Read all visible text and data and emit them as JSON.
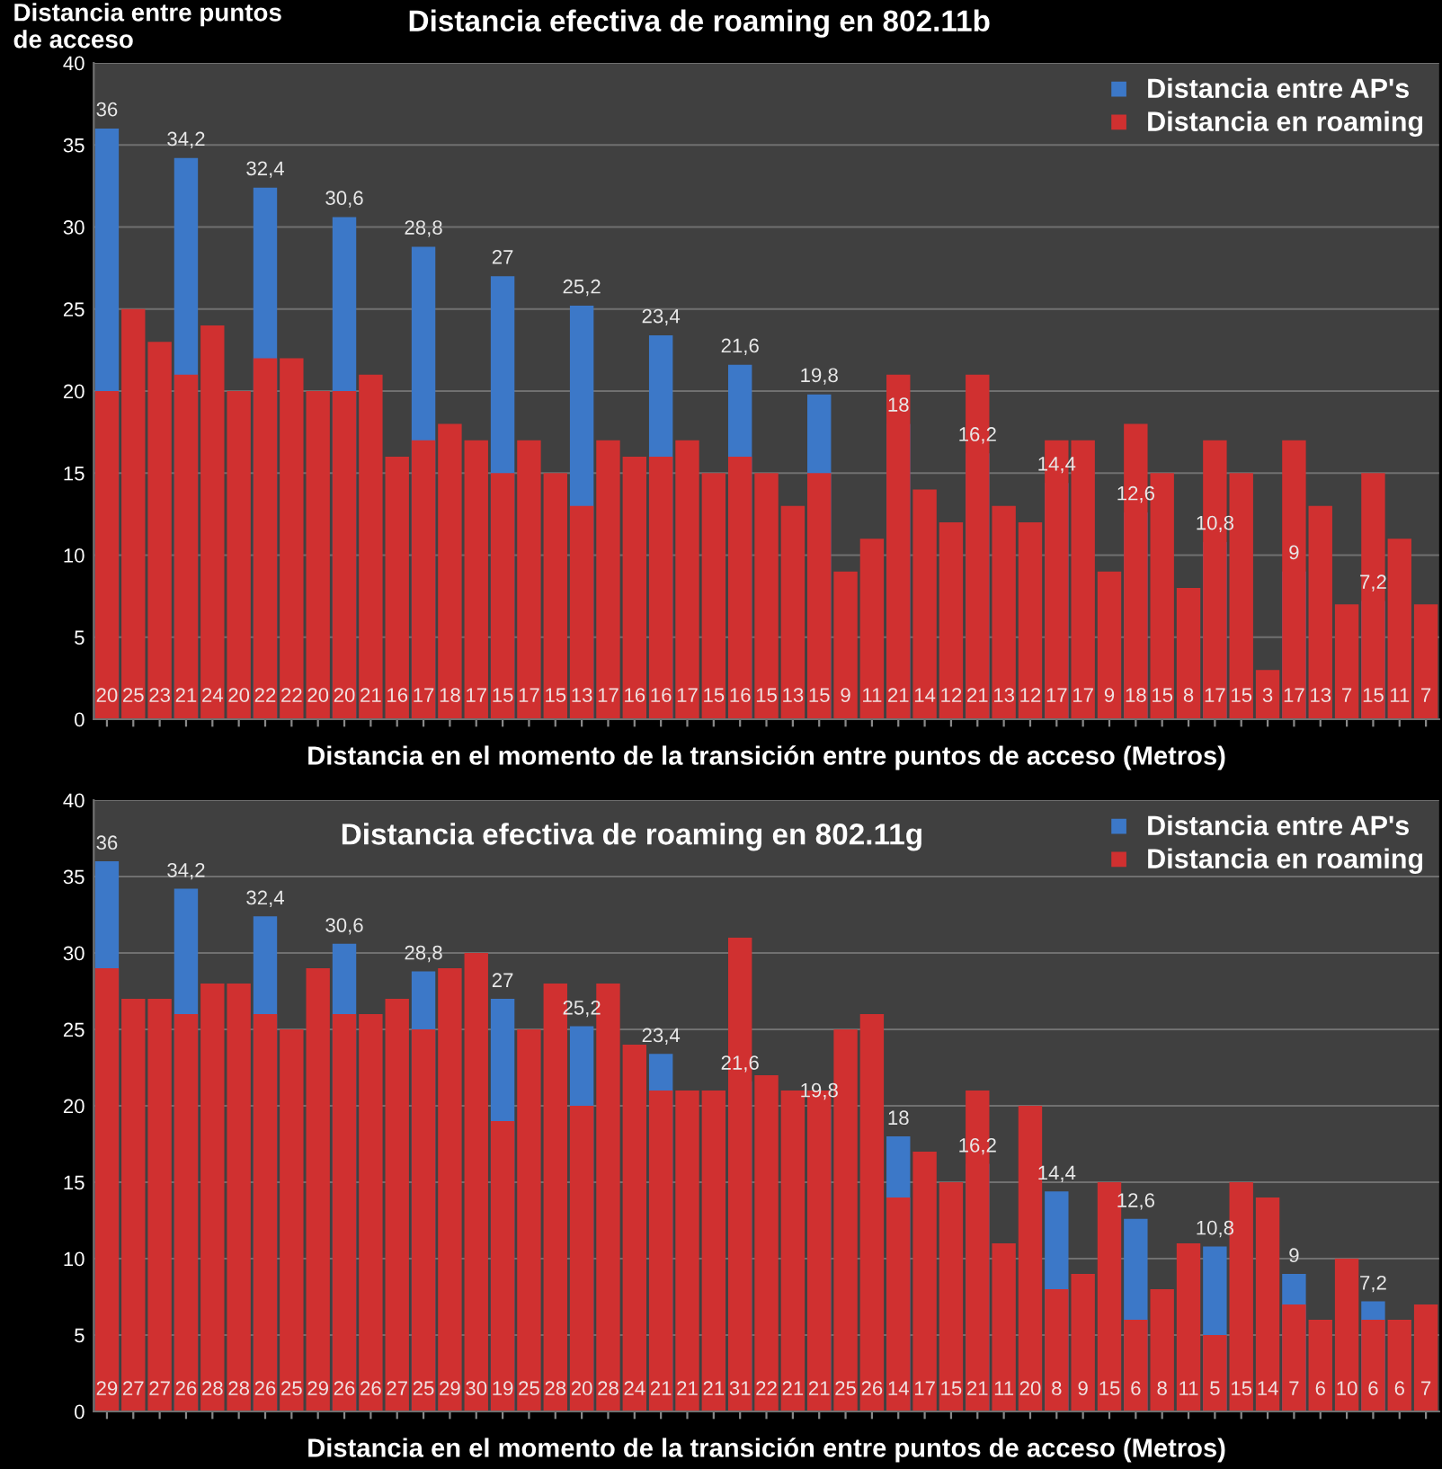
{
  "chart_data": [
    {
      "type": "bar",
      "title": "Distancia efectiva de roaming en 802.11b",
      "ylabel": "Distancia entre puntos de acceso",
      "xlabel": "Distancia en el momento de la transición entre puntos de acceso (Metros)",
      "categories": [
        null,
        null,
        null,
        null,
        null,
        null,
        null,
        null,
        null,
        null,
        null,
        null,
        null,
        null,
        null,
        null,
        null,
        null,
        null,
        null,
        null,
        null,
        null,
        null,
        null,
        null,
        null,
        null,
        null,
        null,
        null,
        null,
        null,
        null,
        null,
        null,
        null,
        null,
        null,
        null,
        null,
        null,
        null,
        null,
        null,
        null,
        null,
        null,
        null,
        null,
        null
      ],
      "ylim": [
        0,
        40
      ],
      "yticks": [
        0,
        5,
        10,
        15,
        20,
        25,
        30,
        35,
        40
      ],
      "grid": "y",
      "legend": "top right",
      "series": [
        {
          "name": "Distancia entre AP's",
          "color": "#3c78c8",
          "values": [
            36,
            null,
            null,
            34.2,
            null,
            null,
            32.4,
            null,
            null,
            30.6,
            null,
            null,
            28.8,
            null,
            null,
            27,
            null,
            null,
            25.2,
            null,
            null,
            23.4,
            null,
            null,
            21.6,
            null,
            null,
            19.8,
            null,
            null,
            18,
            null,
            null,
            16.2,
            null,
            null,
            14.4,
            null,
            null,
            12.6,
            null,
            null,
            10.8,
            null,
            null,
            9,
            null,
            null,
            7.2,
            null,
            null
          ],
          "value_labels": [
            "36",
            null,
            null,
            "34,2",
            null,
            null,
            "32,4",
            null,
            null,
            "30,6",
            null,
            null,
            "28,8",
            null,
            null,
            "27",
            null,
            null,
            "25,2",
            null,
            null,
            "23,4",
            null,
            null,
            "21,6",
            null,
            null,
            "19,8",
            null,
            null,
            "18",
            null,
            null,
            "16,2",
            null,
            null,
            "14,4",
            null,
            null,
            "12,6",
            null,
            null,
            "10,8",
            null,
            null,
            "9",
            null,
            null,
            "7,2",
            null,
            null
          ]
        },
        {
          "name": "Distancia en roaming",
          "color": "#d03030",
          "values": [
            20,
            25,
            23,
            21,
            24,
            20,
            22,
            22,
            20,
            20,
            21,
            16,
            17,
            18,
            17,
            15,
            17,
            15,
            13,
            17,
            16,
            16,
            17,
            15,
            16,
            15,
            13,
            15,
            9,
            11,
            21,
            14,
            12,
            21,
            13,
            12,
            17,
            17,
            9,
            18,
            15,
            8,
            17,
            15,
            3,
            17,
            13,
            7,
            15,
            11,
            7
          ],
          "value_labels": [
            "20",
            "25",
            "23",
            "21",
            "24",
            "20",
            "22",
            "22",
            "20",
            "20",
            "21",
            "16",
            "17",
            "18",
            "17",
            "15",
            "17",
            "15",
            "13",
            "17",
            "16",
            "16",
            "17",
            "15",
            "16",
            "15",
            "13",
            "15",
            "9",
            "11",
            "21",
            "14",
            "12",
            "21",
            "13",
            "12",
            "17",
            "17",
            "9",
            "18",
            "15",
            "8",
            "17",
            "15",
            "3",
            "17",
            "13",
            "7",
            "15",
            "11",
            "7"
          ]
        }
      ]
    },
    {
      "type": "bar",
      "title": "Distancia efectiva de roaming en 802.11g",
      "xlabel": "Distancia en el momento de la transición entre puntos de acceso (Metros)",
      "categories": [
        null,
        null,
        null,
        null,
        null,
        null,
        null,
        null,
        null,
        null,
        null,
        null,
        null,
        null,
        null,
        null,
        null,
        null,
        null,
        null,
        null,
        null,
        null,
        null,
        null,
        null,
        null,
        null,
        null,
        null,
        null,
        null,
        null,
        null,
        null,
        null,
        null,
        null,
        null,
        null,
        null,
        null,
        null,
        null,
        null,
        null,
        null,
        null,
        null,
        null,
        null
      ],
      "ylim": [
        0,
        40
      ],
      "yticks": [
        0,
        5,
        10,
        15,
        20,
        25,
        30,
        35,
        40
      ],
      "grid": "y",
      "legend": "top right",
      "series": [
        {
          "name": "Distancia entre AP's",
          "color": "#3c78c8",
          "values": [
            36,
            null,
            null,
            34.2,
            null,
            null,
            32.4,
            null,
            null,
            30.6,
            null,
            null,
            28.8,
            null,
            null,
            27,
            null,
            null,
            25.2,
            null,
            null,
            23.4,
            null,
            null,
            21.6,
            null,
            null,
            19.8,
            null,
            null,
            18,
            null,
            null,
            16.2,
            null,
            null,
            14.4,
            null,
            null,
            12.6,
            null,
            null,
            10.8,
            null,
            null,
            9,
            null,
            null,
            7.2,
            null,
            null
          ],
          "value_labels": [
            "36",
            null,
            null,
            "34,2",
            null,
            null,
            "32,4",
            null,
            null,
            "30,6",
            null,
            null,
            "28,8",
            null,
            null,
            "27",
            null,
            null,
            "25,2",
            null,
            null,
            "23,4",
            null,
            null,
            "21,6",
            null,
            null,
            "19,8",
            null,
            null,
            "18",
            null,
            null,
            "16,2",
            null,
            null,
            "14,4",
            null,
            null,
            "12,6",
            null,
            null,
            "10,8",
            null,
            null,
            "9",
            null,
            null,
            "7,2",
            null,
            null
          ]
        },
        {
          "name": "Distancia en roaming",
          "color": "#d03030",
          "values": [
            29,
            27,
            27,
            26,
            28,
            28,
            26,
            25,
            29,
            26,
            26,
            27,
            25,
            29,
            30,
            19,
            25,
            28,
            20,
            28,
            24,
            21,
            21,
            21,
            31,
            22,
            21,
            21,
            25,
            26,
            14,
            17,
            15,
            21,
            11,
            20,
            8,
            9,
            15,
            6,
            8,
            11,
            5,
            15,
            14,
            7,
            6,
            10,
            6,
            6,
            7
          ],
          "value_labels": [
            "29",
            "27",
            "27",
            "26",
            "28",
            "28",
            "26",
            "25",
            "29",
            "26",
            "26",
            "27",
            "25",
            "29",
            "30",
            "19",
            "25",
            "28",
            "20",
            "28",
            "24",
            "21",
            "21",
            "21",
            "31",
            "22",
            "21",
            "21",
            "25",
            "26",
            "14",
            "17",
            "15",
            "21",
            "11",
            "20",
            "8",
            "9",
            "15",
            "6",
            "8",
            "11",
            "5",
            "15",
            "14",
            "7",
            "6",
            "10",
            "6",
            "6",
            "7"
          ]
        }
      ]
    }
  ]
}
